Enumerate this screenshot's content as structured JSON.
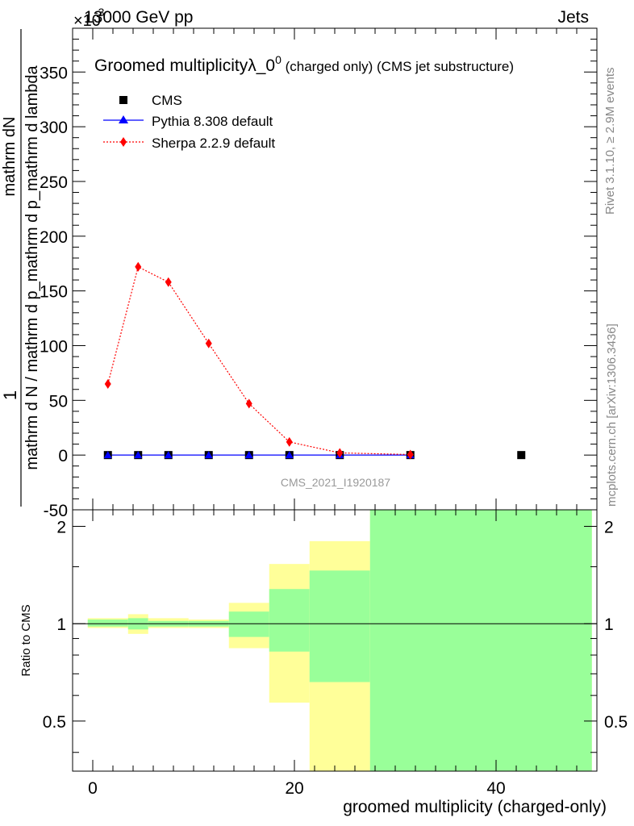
{
  "header": {
    "energy": "13000 GeV pp",
    "process": "Jets",
    "exponent_prefix": "×10",
    "exponent": "-3"
  },
  "side_labels": {
    "rivet": "Rivet 3.1.10, ≥ 2.9M events",
    "mcplots": "mcplots.cern.ch [arXiv:1306.3436]"
  },
  "colors": {
    "cms": "#000000",
    "pythia": "#0000ff",
    "sherpa": "#ff0000",
    "band_yellow": "#ffff99",
    "band_green": "#99ff99"
  },
  "chart_data": [
    {
      "type": "scatter",
      "title": "Groomed multiplicityλ_0",
      "title_sup": "0",
      "title_suffix": " (charged only) (CMS jet substructure)",
      "watermark": "CMS_2021_I1920187",
      "ylabel": "1 / mathrm d N / mathrm d p_mathrm d p_mathrm d lambda mathrm dN",
      "ylabel_parts": [
        "1",
        "mathrm d N / mathrm d p_mathrm d p_mathrm d lambda",
        "mathrm dN"
      ],
      "xlim": [
        -2,
        50
      ],
      "ylim": [
        -50,
        390
      ],
      "y_ticks": [
        -50,
        0,
        50,
        100,
        150,
        200,
        250,
        300,
        350
      ],
      "legend_position": "top-left",
      "legend": [
        "CMS",
        "Pythia 8.308 default",
        "Sherpa 2.2.9 default"
      ],
      "series": [
        {
          "name": "CMS",
          "marker": "square",
          "x": [
            1.5,
            4.5,
            7.5,
            11.5,
            15.5,
            19.5,
            24.5,
            31.5,
            42.5
          ],
          "y": [
            0,
            0,
            0,
            0,
            0,
            0,
            0,
            0,
            0
          ]
        },
        {
          "name": "Pythia 8.308 default",
          "marker": "triangle",
          "x": [
            1.5,
            4.5,
            7.5,
            11.5,
            15.5,
            19.5,
            24.5,
            31.5
          ],
          "y": [
            0,
            0,
            0,
            0,
            0,
            0,
            0,
            0
          ]
        },
        {
          "name": "Sherpa 2.2.9 default",
          "marker": "diamond",
          "x": [
            1.5,
            4.5,
            7.5,
            11.5,
            15.5,
            19.5,
            24.5,
            31.5
          ],
          "y": [
            65,
            172,
            158,
            102,
            47,
            12,
            2,
            0.5
          ]
        }
      ]
    },
    {
      "type": "area",
      "ylabel": "Ratio to CMS",
      "xlabel": "groomed multiplicity (charged-only)",
      "xlim": [
        -2,
        50
      ],
      "ylim": [
        0.35,
        2.25
      ],
      "y_ticks": [
        0.5,
        1,
        2
      ],
      "x_ticks": [
        0,
        20,
        40
      ],
      "bands": [
        {
          "x0": -0.5,
          "x1": 3.5,
          "yellow": [
            0.97,
            1.04
          ],
          "green": [
            0.98,
            1.03
          ]
        },
        {
          "x0": 3.5,
          "x1": 5.5,
          "yellow": [
            0.93,
            1.07
          ],
          "green": [
            0.96,
            1.04
          ]
        },
        {
          "x0": 5.5,
          "x1": 9.5,
          "yellow": [
            0.97,
            1.04
          ],
          "green": [
            0.98,
            1.02
          ]
        },
        {
          "x0": 9.5,
          "x1": 13.5,
          "yellow": [
            0.97,
            1.03
          ],
          "green": [
            0.98,
            1.02
          ]
        },
        {
          "x0": 13.5,
          "x1": 17.5,
          "yellow": [
            0.84,
            1.16
          ],
          "green": [
            0.91,
            1.09
          ]
        },
        {
          "x0": 17.5,
          "x1": 21.5,
          "yellow": [
            0.57,
            1.53
          ],
          "green": [
            0.82,
            1.28
          ]
        },
        {
          "x0": 21.5,
          "x1": 27.5,
          "yellow": [
            0.35,
            1.8
          ],
          "green": [
            0.66,
            1.46
          ]
        },
        {
          "x0": 27.5,
          "x1": 49.5,
          "yellow": [
            0.35,
            2.25
          ],
          "green": [
            0.35,
            2.25
          ]
        }
      ],
      "reference": 1
    }
  ]
}
